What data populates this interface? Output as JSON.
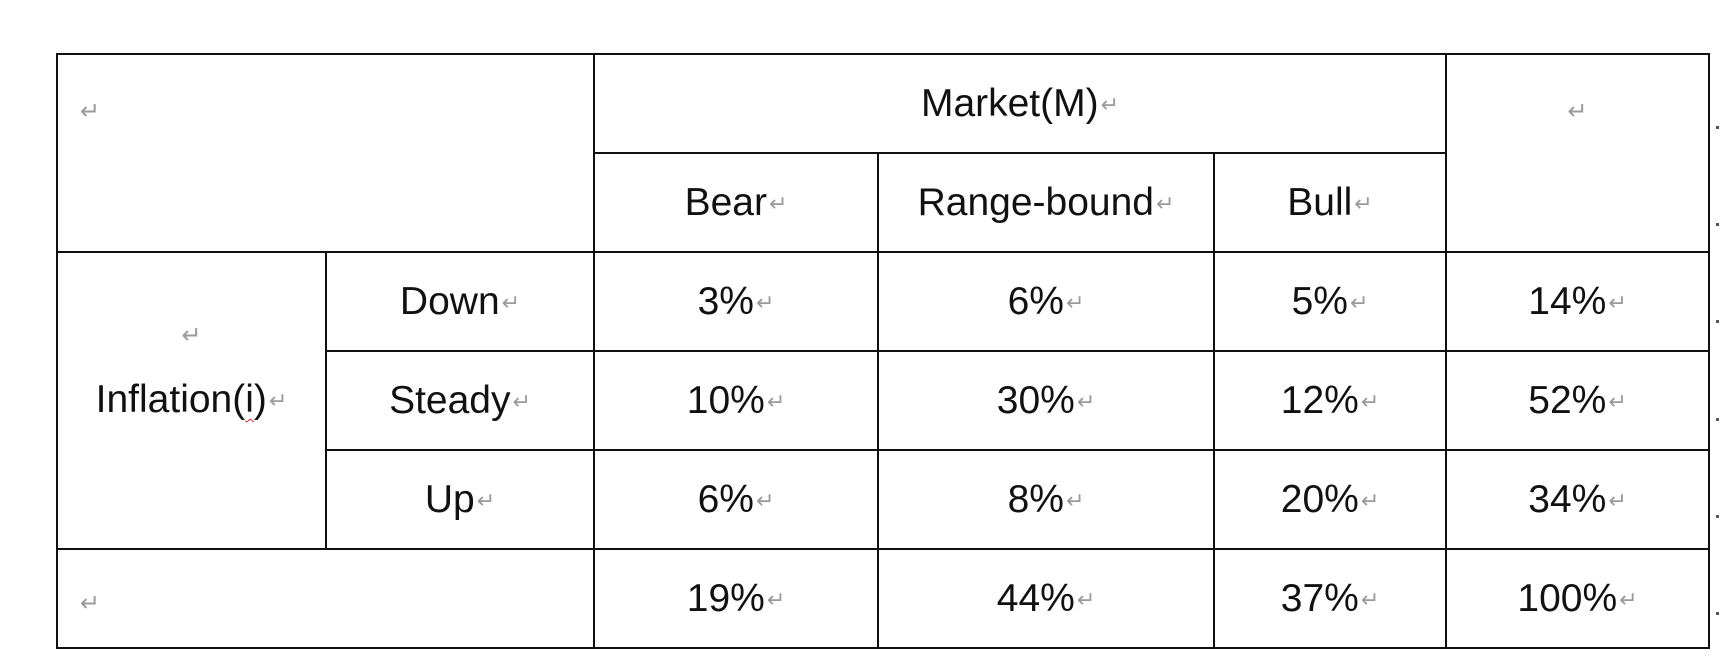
{
  "pilcrow": "↵",
  "table": {
    "top_header": "Market(M)",
    "market_columns": [
      "Bear",
      "Range-bound",
      "Bull"
    ],
    "row_group_label": "Inflation(i)",
    "rows": [
      {
        "label": "Down",
        "values": [
          "3%",
          "6%",
          "5%"
        ],
        "total": "14%"
      },
      {
        "label": "Steady",
        "values": [
          "10%",
          "30%",
          "12%"
        ],
        "total": "52%"
      },
      {
        "label": "Up",
        "values": [
          "6%",
          "8%",
          "20%"
        ],
        "total": "34%"
      }
    ],
    "column_totals": [
      "19%",
      "44%",
      "37%"
    ],
    "grand_total": "100%"
  }
}
